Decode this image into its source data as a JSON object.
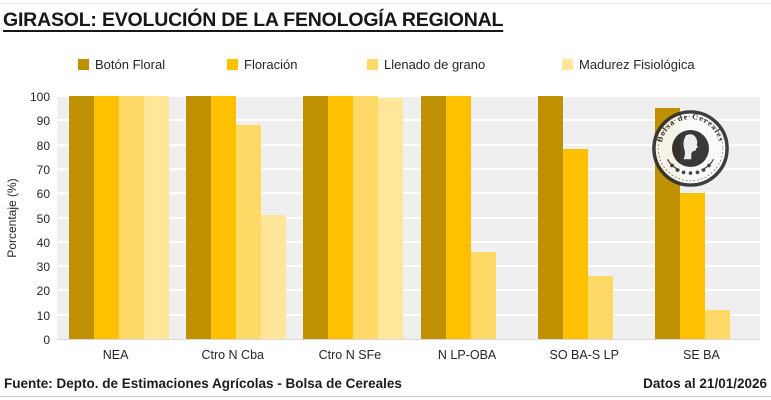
{
  "title": "GIRASOL: EVOLUCIÓN DE LA FENOLOGÍA REGIONAL",
  "chart_data": {
    "type": "bar",
    "title": "GIRASOL: EVOLUCIÓN DE LA FENOLOGÍA REGIONAL",
    "xlabel": "",
    "ylabel": "Porcentaje (%)",
    "ylim": [
      0,
      100
    ],
    "yticks": [
      0,
      10,
      20,
      30,
      40,
      50,
      60,
      70,
      80,
      90,
      100
    ],
    "grid": true,
    "legend_position": "top",
    "plot_background": "#efefef",
    "categories": [
      "NEA",
      "Ctro N Cba",
      "Ctro N SFe",
      "N LP-OBA",
      "SO BA-S LP",
      "SE BA"
    ],
    "series": [
      {
        "name": "Botón Floral",
        "color": "#BF9000",
        "values": [
          100,
          100,
          100,
          100,
          100,
          95
        ]
      },
      {
        "name": "Floración",
        "color": "#FFC000",
        "values": [
          100,
          100,
          100,
          100,
          78,
          60
        ]
      },
      {
        "name": "Llenado de grano",
        "color": "#FFD966",
        "values": [
          100,
          88,
          100,
          36,
          26,
          12
        ]
      },
      {
        "name": "Madurez Fisiológica",
        "color": "#FFE699",
        "values": [
          100,
          51,
          99,
          0,
          0,
          0
        ]
      }
    ]
  },
  "logo": {
    "text": "Bolsa de Cereales"
  },
  "footer": {
    "source": "Fuente: Depto. de Estimaciones Agrícolas - Bolsa de Cereales",
    "date": "Datos al 21/01/2026"
  }
}
